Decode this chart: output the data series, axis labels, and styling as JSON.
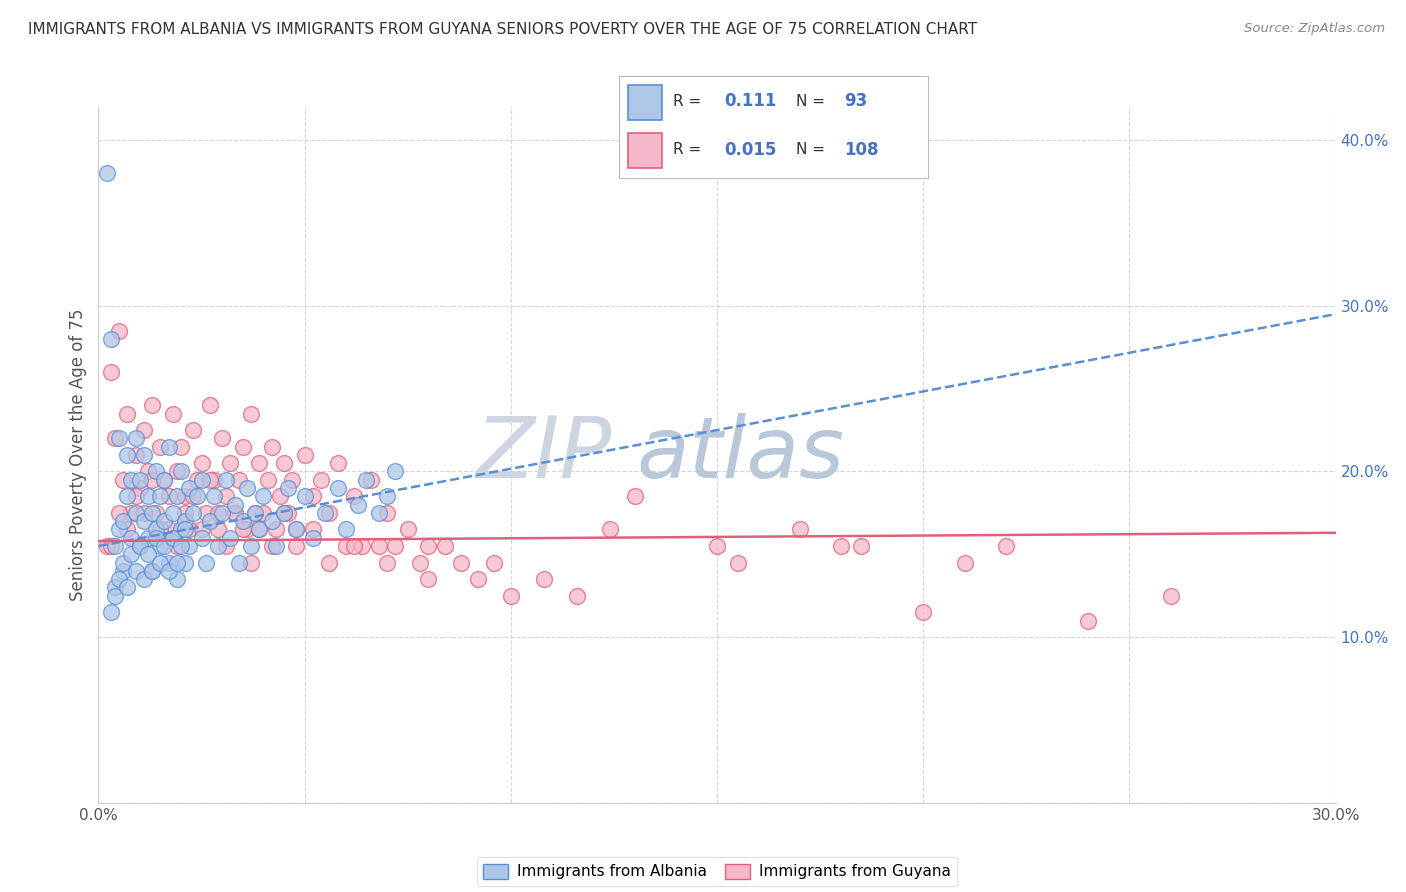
{
  "title": "IMMIGRANTS FROM ALBANIA VS IMMIGRANTS FROM GUYANA SENIORS POVERTY OVER THE AGE OF 75 CORRELATION CHART",
  "source": "Source: ZipAtlas.com",
  "ylabel": "Seniors Poverty Over the Age of 75",
  "xlim": [
    0.0,
    0.3
  ],
  "ylim": [
    0.0,
    0.42
  ],
  "xticks": [
    0.0,
    0.05,
    0.1,
    0.15,
    0.2,
    0.25,
    0.3
  ],
  "xtick_labels": [
    "0.0%",
    "",
    "",
    "",
    "",
    "",
    "30.0%"
  ],
  "yticks": [
    0.0,
    0.1,
    0.2,
    0.3,
    0.4
  ],
  "ytick_labels": [
    "",
    "10.0%",
    "20.0%",
    "30.0%",
    "40.0%"
  ],
  "albania_R": 0.111,
  "albania_N": 93,
  "guyana_R": 0.015,
  "guyana_N": 108,
  "albania_color": "#aec6e8",
  "guyana_color": "#f4b8c8",
  "albania_line_color": "#5b8fd4",
  "guyana_line_color": "#e0607a",
  "background_color": "#ffffff",
  "grid_color": "#cccccc",
  "legend_label_albania": "Immigrants from Albania",
  "legend_label_guyana": "Immigrants from Guyana",
  "albania_scatter_x": [
    0.002,
    0.003,
    0.004,
    0.004,
    0.005,
    0.005,
    0.006,
    0.006,
    0.007,
    0.007,
    0.008,
    0.008,
    0.009,
    0.009,
    0.01,
    0.01,
    0.011,
    0.011,
    0.012,
    0.012,
    0.013,
    0.013,
    0.014,
    0.014,
    0.015,
    0.015,
    0.016,
    0.016,
    0.017,
    0.017,
    0.018,
    0.018,
    0.019,
    0.019,
    0.02,
    0.02,
    0.021,
    0.021,
    0.022,
    0.022,
    0.023,
    0.024,
    0.025,
    0.025,
    0.026,
    0.027,
    0.028,
    0.029,
    0.03,
    0.031,
    0.032,
    0.033,
    0.034,
    0.035,
    0.036,
    0.037,
    0.038,
    0.039,
    0.04,
    0.042,
    0.043,
    0.045,
    0.046,
    0.048,
    0.05,
    0.052,
    0.055,
    0.058,
    0.06,
    0.063,
    0.065,
    0.068,
    0.07,
    0.072,
    0.003,
    0.004,
    0.005,
    0.006,
    0.007,
    0.008,
    0.009,
    0.01,
    0.011,
    0.012,
    0.013,
    0.014,
    0.015,
    0.016,
    0.017,
    0.018,
    0.019,
    0.02,
    0.021
  ],
  "albania_scatter_y": [
    0.38,
    0.28,
    0.13,
    0.155,
    0.165,
    0.22,
    0.17,
    0.14,
    0.185,
    0.21,
    0.195,
    0.16,
    0.175,
    0.22,
    0.195,
    0.155,
    0.17,
    0.21,
    0.185,
    0.16,
    0.175,
    0.14,
    0.2,
    0.165,
    0.185,
    0.155,
    0.17,
    0.195,
    0.145,
    0.215,
    0.175,
    0.16,
    0.185,
    0.135,
    0.2,
    0.165,
    0.17,
    0.145,
    0.19,
    0.155,
    0.175,
    0.185,
    0.16,
    0.195,
    0.145,
    0.17,
    0.185,
    0.155,
    0.175,
    0.195,
    0.16,
    0.18,
    0.145,
    0.17,
    0.19,
    0.155,
    0.175,
    0.165,
    0.185,
    0.17,
    0.155,
    0.175,
    0.19,
    0.165,
    0.185,
    0.16,
    0.175,
    0.19,
    0.165,
    0.18,
    0.195,
    0.175,
    0.185,
    0.2,
    0.115,
    0.125,
    0.135,
    0.145,
    0.13,
    0.15,
    0.14,
    0.155,
    0.135,
    0.15,
    0.14,
    0.16,
    0.145,
    0.155,
    0.14,
    0.16,
    0.145,
    0.155,
    0.165
  ],
  "guyana_scatter_x": [
    0.002,
    0.003,
    0.004,
    0.005,
    0.006,
    0.007,
    0.008,
    0.009,
    0.01,
    0.011,
    0.012,
    0.013,
    0.014,
    0.015,
    0.016,
    0.017,
    0.018,
    0.019,
    0.02,
    0.021,
    0.022,
    0.023,
    0.024,
    0.025,
    0.026,
    0.027,
    0.028,
    0.029,
    0.03,
    0.031,
    0.032,
    0.033,
    0.034,
    0.035,
    0.036,
    0.037,
    0.038,
    0.039,
    0.04,
    0.041,
    0.042,
    0.043,
    0.044,
    0.045,
    0.046,
    0.047,
    0.048,
    0.05,
    0.052,
    0.054,
    0.056,
    0.058,
    0.06,
    0.062,
    0.064,
    0.066,
    0.068,
    0.07,
    0.072,
    0.075,
    0.078,
    0.08,
    0.084,
    0.088,
    0.092,
    0.096,
    0.1,
    0.108,
    0.116,
    0.124,
    0.003,
    0.005,
    0.007,
    0.009,
    0.011,
    0.013,
    0.015,
    0.017,
    0.019,
    0.021,
    0.023,
    0.025,
    0.027,
    0.029,
    0.031,
    0.033,
    0.035,
    0.037,
    0.039,
    0.042,
    0.045,
    0.048,
    0.052,
    0.056,
    0.062,
    0.07,
    0.08,
    0.13,
    0.185,
    0.22,
    0.26,
    0.17,
    0.2,
    0.15,
    0.24,
    0.18,
    0.155,
    0.21
  ],
  "guyana_scatter_y": [
    0.155,
    0.26,
    0.22,
    0.285,
    0.195,
    0.235,
    0.175,
    0.21,
    0.19,
    0.225,
    0.2,
    0.24,
    0.175,
    0.215,
    0.195,
    0.165,
    0.235,
    0.2,
    0.215,
    0.185,
    0.165,
    0.225,
    0.195,
    0.205,
    0.175,
    0.24,
    0.195,
    0.165,
    0.22,
    0.185,
    0.205,
    0.175,
    0.195,
    0.215,
    0.165,
    0.235,
    0.175,
    0.205,
    0.175,
    0.195,
    0.215,
    0.165,
    0.185,
    0.205,
    0.175,
    0.195,
    0.165,
    0.21,
    0.185,
    0.195,
    0.175,
    0.205,
    0.155,
    0.185,
    0.155,
    0.195,
    0.155,
    0.175,
    0.155,
    0.165,
    0.145,
    0.155,
    0.155,
    0.145,
    0.135,
    0.145,
    0.125,
    0.135,
    0.125,
    0.165,
    0.155,
    0.175,
    0.165,
    0.185,
    0.175,
    0.195,
    0.165,
    0.185,
    0.155,
    0.175,
    0.185,
    0.165,
    0.195,
    0.175,
    0.155,
    0.175,
    0.165,
    0.145,
    0.165,
    0.155,
    0.175,
    0.155,
    0.165,
    0.145,
    0.155,
    0.145,
    0.135,
    0.185,
    0.155,
    0.155,
    0.125,
    0.165,
    0.115,
    0.155,
    0.11,
    0.155,
    0.145,
    0.145
  ],
  "albania_line_start_x": 0.0,
  "albania_line_start_y": 0.155,
  "albania_line_end_x": 0.3,
  "albania_line_end_y": 0.295,
  "guyana_line_start_x": 0.0,
  "guyana_line_start_y": 0.158,
  "guyana_line_end_x": 0.3,
  "guyana_line_end_y": 0.163
}
